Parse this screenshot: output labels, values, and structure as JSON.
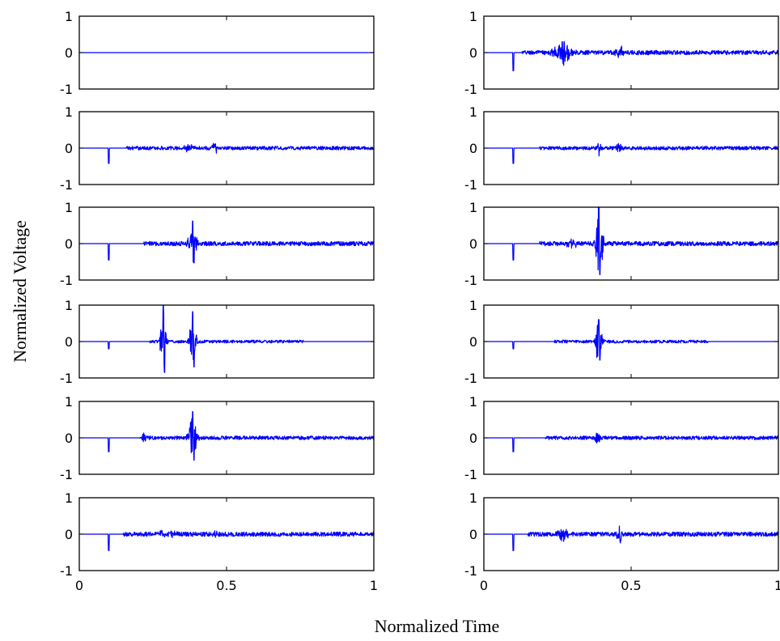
{
  "figure": {
    "xlabel": "Normalized Time",
    "ylabel": "Normalized Voltage"
  },
  "chart_data": {
    "type": "line",
    "layout": "grid of small multiples, 6 rows x 2 columns",
    "xlim": [
      0,
      1
    ],
    "ylim": [
      -1,
      1
    ],
    "x_ticks": [
      0,
      0.5,
      1
    ],
    "x_tick_labels": [
      "0",
      "0.5",
      "1"
    ],
    "y_ticks": [
      1,
      0,
      -1
    ],
    "y_tick_labels": [
      "1",
      "0",
      "-1"
    ],
    "grid": false,
    "line_color": "#0000ff",
    "note_xticks": "x tick labels shown only on bottom row",
    "panels": [
      {
        "row": 0,
        "col": 0,
        "onset": 0.0,
        "first_spike": 0.0,
        "noise_start": 0.0,
        "noise_end": 0.0,
        "noise_amp": 0.0,
        "bursts": []
      },
      {
        "row": 0,
        "col": 1,
        "onset": 0.1,
        "first_spike": -0.5,
        "noise_start": 0.13,
        "noise_end": 1.0,
        "noise_amp": 0.06,
        "bursts": [
          {
            "t": 0.27,
            "amp": 0.42,
            "width": 0.06
          },
          {
            "t": 0.46,
            "amp": 0.22,
            "width": 0.03
          }
        ]
      },
      {
        "row": 1,
        "col": 0,
        "onset": 0.1,
        "first_spike": -0.42,
        "noise_start": 0.16,
        "noise_end": 1.0,
        "noise_amp": 0.05,
        "bursts": [
          {
            "t": 0.46,
            "amp": 0.22,
            "width": 0.02
          },
          {
            "t": 0.37,
            "amp": 0.12,
            "width": 0.04
          }
        ]
      },
      {
        "row": 1,
        "col": 1,
        "onset": 0.1,
        "first_spike": -0.42,
        "noise_start": 0.19,
        "noise_end": 1.0,
        "noise_amp": 0.05,
        "bursts": [
          {
            "t": 0.39,
            "amp": 0.22,
            "width": 0.02
          },
          {
            "t": 0.46,
            "amp": 0.2,
            "width": 0.02
          }
        ]
      },
      {
        "row": 2,
        "col": 0,
        "onset": 0.1,
        "first_spike": -0.45,
        "noise_start": 0.22,
        "noise_end": 1.0,
        "noise_amp": 0.06,
        "bursts": [
          {
            "t": 0.385,
            "amp": 0.62,
            "width": 0.03
          }
        ]
      },
      {
        "row": 2,
        "col": 1,
        "onset": 0.1,
        "first_spike": -0.45,
        "noise_start": 0.19,
        "noise_end": 1.0,
        "noise_amp": 0.06,
        "bursts": [
          {
            "t": 0.39,
            "amp": 1.0,
            "width": 0.03
          },
          {
            "t": 0.3,
            "amp": 0.14,
            "width": 0.05
          }
        ]
      },
      {
        "row": 3,
        "col": 0,
        "onset": 0.1,
        "first_spike": -0.2,
        "noise_start": 0.24,
        "noise_end": 0.76,
        "noise_amp": 0.04,
        "bursts": [
          {
            "t": 0.285,
            "amp": 1.0,
            "width": 0.02
          },
          {
            "t": 0.385,
            "amp": 0.82,
            "width": 0.025
          }
        ]
      },
      {
        "row": 3,
        "col": 1,
        "onset": 0.1,
        "first_spike": -0.2,
        "noise_start": 0.24,
        "noise_end": 0.76,
        "noise_amp": 0.04,
        "bursts": [
          {
            "t": 0.39,
            "amp": 0.6,
            "width": 0.025
          }
        ]
      },
      {
        "row": 4,
        "col": 0,
        "onset": 0.1,
        "first_spike": -0.38,
        "noise_start": 0.21,
        "noise_end": 1.0,
        "noise_amp": 0.05,
        "bursts": [
          {
            "t": 0.385,
            "amp": 0.72,
            "width": 0.03
          },
          {
            "t": 0.22,
            "amp": 0.16,
            "width": 0.02
          }
        ]
      },
      {
        "row": 4,
        "col": 1,
        "onset": 0.1,
        "first_spike": -0.38,
        "noise_start": 0.21,
        "noise_end": 1.0,
        "noise_amp": 0.05,
        "bursts": [
          {
            "t": 0.385,
            "amp": 0.2,
            "width": 0.02
          }
        ]
      },
      {
        "row": 5,
        "col": 0,
        "onset": 0.1,
        "first_spike": -0.45,
        "noise_start": 0.15,
        "noise_end": 1.0,
        "noise_amp": 0.06,
        "bursts": [
          {
            "t": 0.46,
            "amp": 0.14,
            "width": 0.02
          },
          {
            "t": 0.3,
            "amp": 0.1,
            "width": 0.08
          }
        ]
      },
      {
        "row": 5,
        "col": 1,
        "onset": 0.1,
        "first_spike": -0.45,
        "noise_start": 0.15,
        "noise_end": 1.0,
        "noise_amp": 0.06,
        "bursts": [
          {
            "t": 0.27,
            "amp": 0.2,
            "width": 0.04
          },
          {
            "t": 0.46,
            "amp": 0.3,
            "width": 0.02
          }
        ]
      }
    ]
  }
}
